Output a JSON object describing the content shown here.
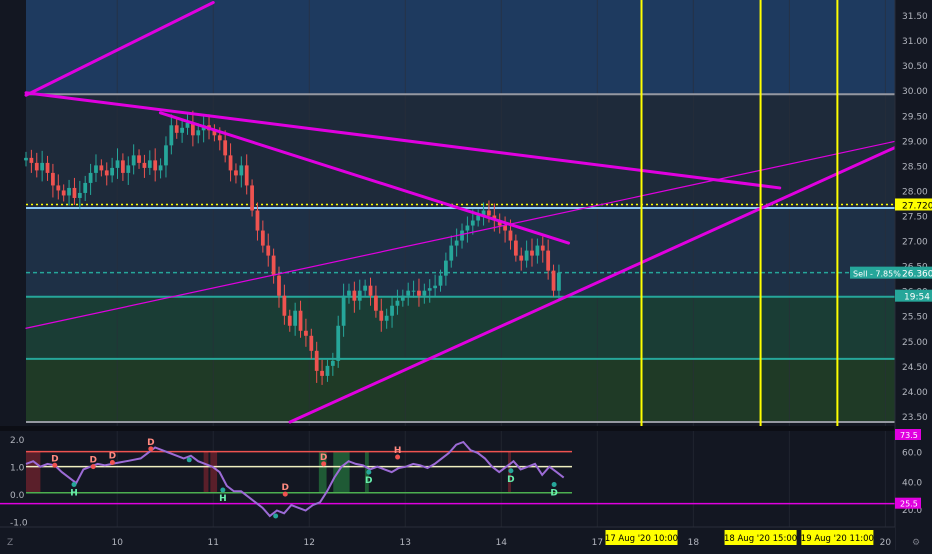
{
  "theme": {
    "bg": "#131722",
    "bull": "#26a69a",
    "bear": "#ef5350",
    "magenta": "#e000e0",
    "yellow": "#ffff00",
    "axis_text": "#b2b5be",
    "grid": "#2a2e39"
  },
  "chart_data": [
    {
      "type": "candlestick",
      "title": "",
      "xlabel": "",
      "ylabel": "",
      "ylim": [
        23.3,
        31.8
      ],
      "y_ticks": [
        "31.50",
        "31.00",
        "30.50",
        "30.00",
        "29.50",
        "29.00",
        "28.50",
        "28.00",
        "27.50",
        "27.00",
        "26.50",
        "26.00",
        "25.50",
        "25.00",
        "24.50",
        "24.00",
        "23.50"
      ],
      "x_ticks": [
        {
          "label": "10",
          "day": 10
        },
        {
          "label": "11",
          "day": 11
        },
        {
          "label": "12",
          "day": 12
        },
        {
          "label": "13",
          "day": 13
        },
        {
          "label": "14",
          "day": 14
        },
        {
          "label": "17",
          "day": 15
        },
        {
          "label": "18",
          "day": 16
        },
        {
          "label": "19",
          "day": 17
        },
        {
          "label": "20",
          "day": 18
        }
      ],
      "x_range": [
        9.05,
        18.1
      ],
      "price_close_series": [
        28.65,
        28.55,
        28.4,
        28.55,
        28.35,
        28.1,
        28.0,
        27.9,
        28.05,
        27.85,
        27.95,
        28.15,
        28.35,
        28.5,
        28.4,
        28.3,
        28.45,
        28.6,
        28.35,
        28.5,
        28.7,
        28.55,
        28.45,
        28.6,
        28.4,
        28.5,
        28.9,
        29.3,
        29.15,
        29.25,
        29.35,
        29.1,
        29.2,
        29.3,
        29.2,
        29.1,
        29.0,
        28.7,
        28.4,
        28.3,
        28.5,
        28.1,
        27.6,
        27.2,
        26.9,
        26.7,
        26.3,
        25.9,
        25.5,
        25.3,
        25.6,
        25.2,
        25.1,
        24.8,
        24.4,
        24.3,
        24.5,
        24.6,
        25.3,
        25.9,
        26.0,
        25.8,
        26.0,
        26.1,
        25.9,
        25.6,
        25.4,
        25.5,
        25.7,
        25.8,
        25.9,
        26.0,
        26.0,
        25.9,
        26.0,
        26.05,
        26.1,
        26.3,
        26.6,
        26.9,
        27.0,
        27.2,
        27.3,
        27.4,
        27.5,
        27.6,
        27.5,
        27.4,
        27.3,
        27.2,
        27.0,
        26.7,
        26.6,
        26.8,
        26.7,
        26.9,
        26.8,
        26.4,
        26.0,
        26.36
      ],
      "price_x_range": [
        9.05,
        14.6
      ],
      "horizontal_levels": [
        {
          "value": 29.92,
          "color": "#9598a1"
        },
        {
          "value": 27.72,
          "color": "#ffff00",
          "style": "dotted"
        },
        {
          "value": 27.65,
          "color": "#90caf9"
        },
        {
          "value": 26.36,
          "color": "#26a69a",
          "style": "dashed"
        },
        {
          "value": 25.88,
          "color": "#26a69a"
        },
        {
          "value": 24.64,
          "color": "#26a69a"
        },
        {
          "value": 23.38,
          "color": "#9598a1"
        }
      ],
      "zones": [
        {
          "from": 29.92,
          "to": 31.8,
          "color": "#1e3a5f"
        },
        {
          "from": 27.65,
          "to": 29.92,
          "color": "#1e2a3a"
        },
        {
          "from": 25.88,
          "to": 27.65,
          "color": "#1e3046"
        },
        {
          "from": 24.64,
          "to": 25.88,
          "color": "#1a3d35"
        },
        {
          "from": 23.38,
          "to": 24.64,
          "color": "#1f3a26"
        }
      ],
      "trendlines": [
        {
          "x1": 9.05,
          "y1": 29.9,
          "x2": 11.0,
          "y2": 31.75
        },
        {
          "x1": 9.05,
          "y1": 29.95,
          "x2": 16.9,
          "y2": 28.05
        },
        {
          "x1": 10.45,
          "y1": 29.55,
          "x2": 14.7,
          "y2": 26.95
        },
        {
          "x1": 11.8,
          "y1": 23.38,
          "x2": 18.15,
          "y2": 28.9
        },
        {
          "x1": 9.05,
          "y1": 25.25,
          "x2": 18.15,
          "y2": 29.0,
          "thin": true
        }
      ],
      "verticals": [
        {
          "day": 15.46,
          "label": "17 Aug '20   10:00"
        },
        {
          "day": 16.7,
          "label": "18 Aug '20   15:00"
        },
        {
          "day": 17.5,
          "label": "19 Aug '20   11:00"
        }
      ],
      "price_labels": [
        {
          "value": 27.72,
          "text": "27.720",
          "kind": "yellow"
        },
        {
          "value": 26.36,
          "text": "26.360",
          "kind": "green"
        },
        {
          "value": 26.36,
          "text": "Sell - 7.85%",
          "kind": "sell"
        },
        {
          "value": 26.1,
          "text": "19:54",
          "kind": "timer"
        }
      ]
    },
    {
      "type": "line",
      "title": "",
      "ylim": [
        -1.2,
        2.3
      ],
      "left_ticks": [
        "2.0",
        "1.0",
        "0.0",
        "-1.0"
      ],
      "right_ticks": [
        "60.0",
        "40.0",
        "20.0"
      ],
      "right_pink_labels": [
        "73.5",
        "25.5"
      ],
      "levels": [
        {
          "value": 1.55,
          "color": "#ef5350"
        },
        {
          "value": 1.0,
          "color": "#f0f0c0"
        },
        {
          "value": 0.05,
          "color": "#4caf50"
        },
        {
          "value": -0.35,
          "color": "#e000e0"
        }
      ],
      "oscillator": [
        1.1,
        1.2,
        1.0,
        1.1,
        1.05,
        0.8,
        0.6,
        0.4,
        0.9,
        1.0,
        1.1,
        1.05,
        1.1,
        1.15,
        1.2,
        1.25,
        1.3,
        1.5,
        1.7,
        1.6,
        1.5,
        1.4,
        1.3,
        1.4,
        1.2,
        1.1,
        1.0,
        0.8,
        0.3,
        0.1,
        0.1,
        -0.1,
        -0.3,
        -0.5,
        -0.8,
        -0.6,
        -0.7,
        -0.4,
        -0.5,
        -0.6,
        -0.4,
        -0.3,
        0.1,
        0.6,
        1.0,
        1.2,
        1.1,
        1.05,
        0.9,
        1.0,
        0.9,
        0.8,
        0.95,
        1.0,
        1.1,
        1.05,
        0.95,
        1.1,
        1.3,
        1.5,
        1.8,
        1.9,
        1.6,
        1.5,
        1.3,
        1.0,
        0.8,
        1.0,
        1.2,
        0.9,
        1.0,
        1.1,
        0.7,
        1.0,
        0.8,
        0.6
      ],
      "osc_x_range": [
        9.05,
        14.65
      ],
      "shaded": [
        {
          "from": 9.05,
          "to": 9.2,
          "color": "#5a1f2a"
        },
        {
          "from": 10.9,
          "to": 10.95,
          "color": "#5a1f2a"
        },
        {
          "from": 10.97,
          "to": 11.04,
          "color": "#5a1f2a"
        },
        {
          "from": 12.1,
          "to": 12.18,
          "color": "#1f5a35"
        },
        {
          "from": 12.25,
          "to": 12.42,
          "color": "#1f5a35"
        },
        {
          "from": 12.58,
          "to": 12.62,
          "color": "#1f5a35"
        },
        {
          "from": 14.07,
          "to": 14.1,
          "color": "#5a1f2a"
        }
      ],
      "markers": [
        {
          "day": 9.35,
          "value": 1.05,
          "text": "D",
          "kind": "bear"
        },
        {
          "day": 9.55,
          "value": 0.35,
          "text": "H",
          "kind": "bull"
        },
        {
          "day": 9.75,
          "value": 1.0,
          "text": "D",
          "kind": "bear"
        },
        {
          "day": 9.95,
          "value": 1.15,
          "text": "D",
          "kind": "bear"
        },
        {
          "day": 10.35,
          "value": 1.65,
          "text": "D",
          "kind": "bear"
        },
        {
          "day": 10.75,
          "value": 1.25,
          "text": "",
          "kind": "bull"
        },
        {
          "day": 11.1,
          "value": 0.15,
          "text": "H",
          "kind": "bull"
        },
        {
          "day": 11.65,
          "value": -0.8,
          "text": "",
          "kind": "bull"
        },
        {
          "day": 11.75,
          "value": 0.0,
          "text": "D",
          "kind": "bear"
        },
        {
          "day": 12.15,
          "value": 1.1,
          "text": "D",
          "kind": "bear"
        },
        {
          "day": 12.62,
          "value": 0.8,
          "text": "D",
          "kind": "bull"
        },
        {
          "day": 12.92,
          "value": 1.35,
          "text": "H",
          "kind": "bear"
        },
        {
          "day": 14.1,
          "value": 0.85,
          "text": "D",
          "kind": "bull"
        },
        {
          "day": 14.55,
          "value": 0.35,
          "text": "D",
          "kind": "bull"
        }
      ]
    }
  ]
}
